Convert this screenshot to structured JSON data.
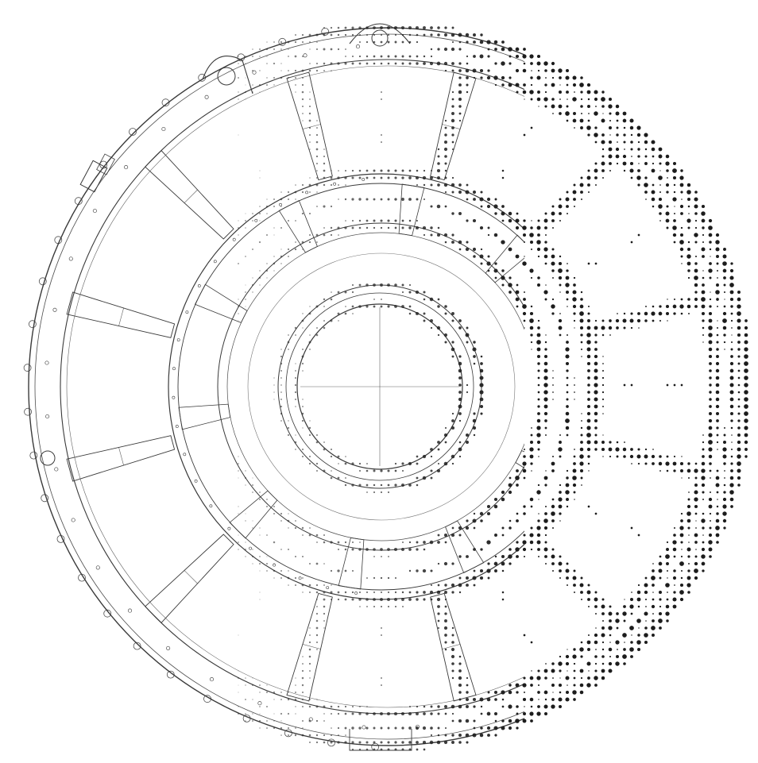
{
  "figure": {
    "subject": "circular-frame-linework",
    "style": "line-drawing-transitioning-to-halftone-dots",
    "colors": {
      "background": "#ffffff",
      "line": "#3a3a3a",
      "dot": "#1c1c1c"
    },
    "outer_spoke_count": 12,
    "inner_spoke_count": 10,
    "crosshair": true
  }
}
